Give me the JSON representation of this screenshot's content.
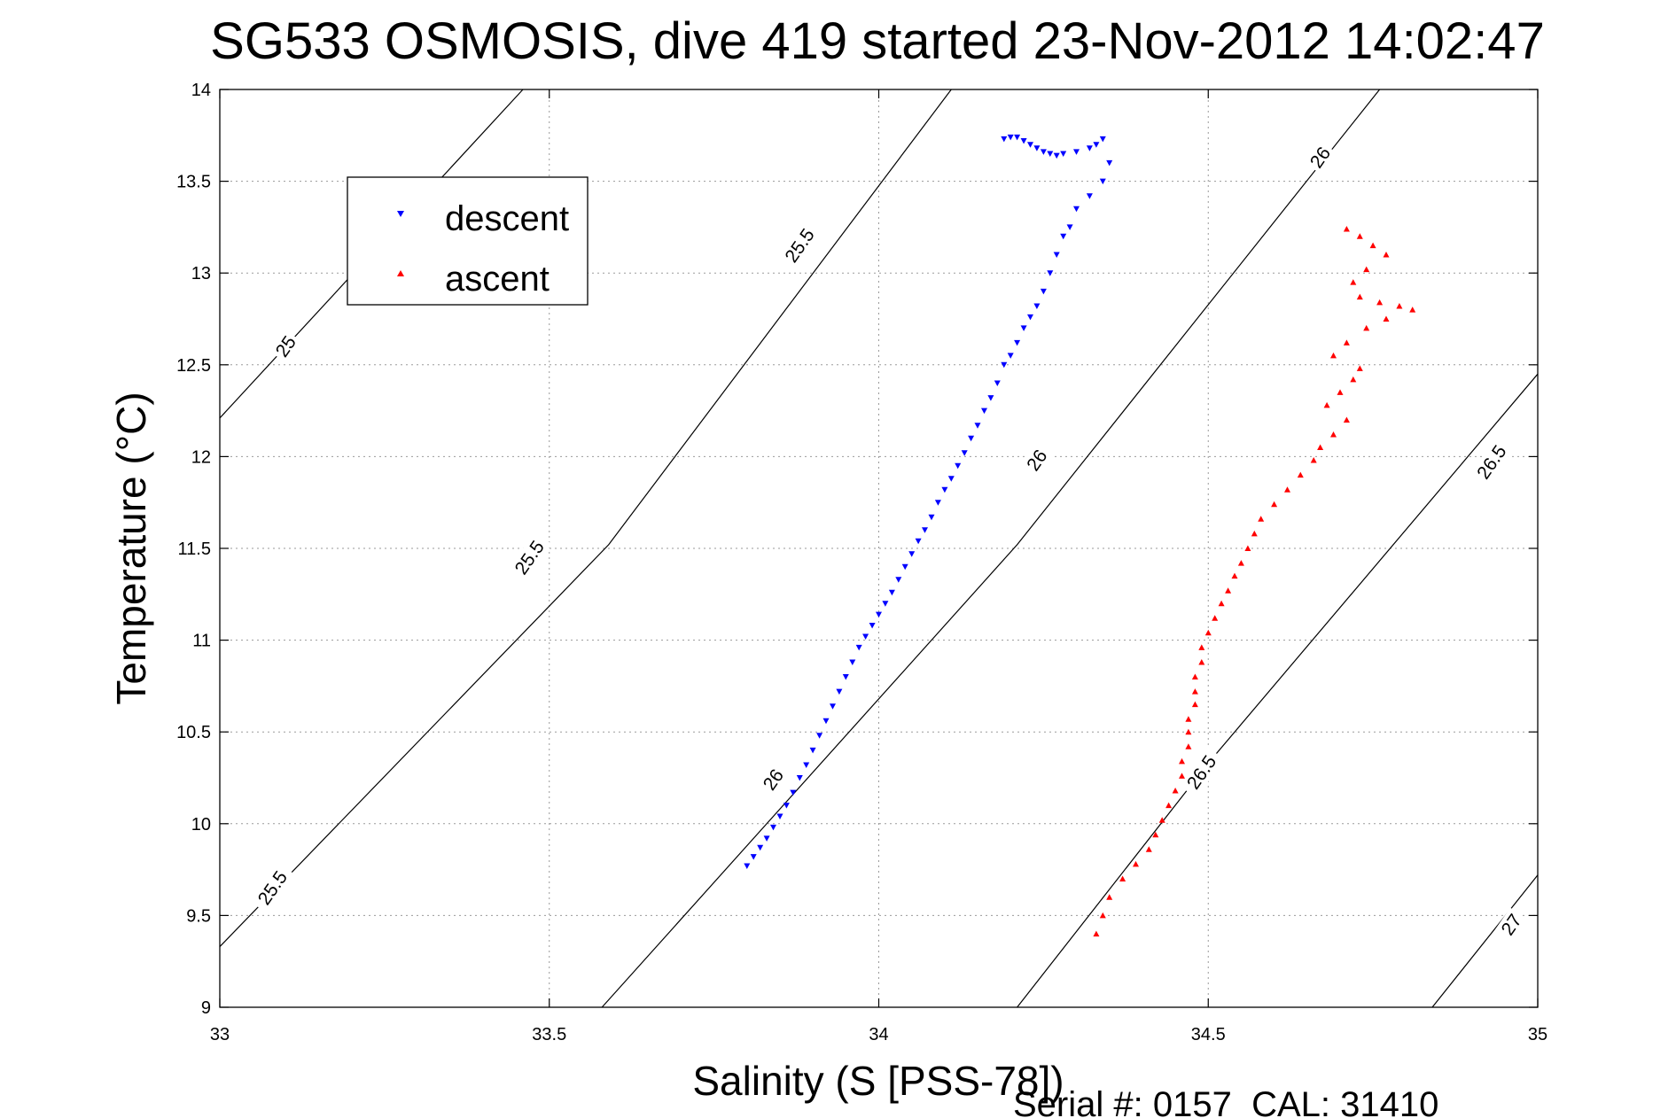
{
  "chart_data": {
    "type": "scatter",
    "title": "SG533 OSMOSIS, dive 419 started 23-Nov-2012 14:02:47",
    "xlabel": "Salinity (S [PSS-78])",
    "ylabel": "Temperature (°C)",
    "xlim": [
      33,
      35
    ],
    "ylim": [
      9,
      14
    ],
    "xticks": [
      "33",
      "33.5",
      "34",
      "34.5",
      "35"
    ],
    "yticks": [
      "9",
      "9.5",
      "10",
      "10.5",
      "11",
      "11.5",
      "12",
      "12.5",
      "13",
      "13.5",
      "14"
    ],
    "grid": true,
    "legend_location": "upper-left",
    "footer": "Serial #: 0157  CAL: 31410",
    "contours": [
      {
        "level": "25",
        "points": [
          [
            33.0,
            12.21
          ],
          [
            33.46,
            14.0
          ]
        ]
      },
      {
        "level": "25.5",
        "points": [
          [
            33.0,
            9.33
          ],
          [
            33.59,
            11.52
          ],
          [
            34.11,
            14.0
          ]
        ]
      },
      {
        "level": "26",
        "points": [
          [
            33.58,
            9.0
          ],
          [
            34.21,
            11.52
          ],
          [
            34.76,
            14.0
          ]
        ]
      },
      {
        "level": "26.5",
        "points": [
          [
            34.21,
            9.0
          ],
          [
            34.5,
            10.33
          ],
          [
            35.0,
            12.45
          ]
        ]
      },
      {
        "level": "27",
        "points": [
          [
            34.84,
            9.0
          ],
          [
            35.0,
            9.72
          ]
        ]
      }
    ],
    "contour_labels": [
      {
        "text": "25",
        "x": 33.1,
        "y": 12.6,
        "angle": -55
      },
      {
        "text": "25.5",
        "x": 33.08,
        "y": 9.65,
        "angle": -55
      },
      {
        "text": "25.5",
        "x": 33.47,
        "y": 11.45,
        "angle": -55
      },
      {
        "text": "25.5",
        "x": 33.88,
        "y": 13.15,
        "angle": -55
      },
      {
        "text": "26",
        "x": 33.84,
        "y": 10.24,
        "angle": -55
      },
      {
        "text": "26",
        "x": 34.24,
        "y": 11.98,
        "angle": -55
      },
      {
        "text": "26",
        "x": 34.67,
        "y": 13.63,
        "angle": -55
      },
      {
        "text": "26.5",
        "x": 34.49,
        "y": 10.28,
        "angle": -55
      },
      {
        "text": "26.5",
        "x": 34.93,
        "y": 11.97,
        "angle": -55
      },
      {
        "text": "27",
        "x": 34.96,
        "y": 9.45,
        "angle": -55
      }
    ],
    "series": [
      {
        "name": "descent",
        "color": "#0000ff",
        "marker": "triangle-down",
        "x": [
          34.34,
          34.33,
          34.32,
          34.3,
          34.28,
          34.27,
          34.26,
          34.25,
          34.24,
          34.23,
          34.22,
          34.21,
          34.2,
          34.19,
          34.35,
          34.34,
          34.32,
          34.3,
          34.29,
          34.28,
          34.27,
          34.26,
          34.25,
          34.24,
          34.23,
          34.22,
          34.21,
          34.2,
          34.19,
          34.18,
          34.17,
          34.16,
          34.15,
          34.14,
          34.13,
          34.12,
          34.11,
          34.1,
          34.09,
          34.08,
          34.07,
          34.06,
          34.05,
          34.04,
          34.03,
          34.02,
          34.01,
          34.0,
          33.99,
          33.98,
          33.97,
          33.96,
          33.95,
          33.94,
          33.93,
          33.92,
          33.91,
          33.9,
          33.89,
          33.88,
          33.87,
          33.86,
          33.85,
          33.84,
          33.83,
          33.82,
          33.81,
          33.8
        ],
        "y": [
          13.73,
          13.7,
          13.68,
          13.66,
          13.65,
          13.64,
          13.65,
          13.66,
          13.68,
          13.7,
          13.72,
          13.74,
          13.74,
          13.73,
          13.6,
          13.5,
          13.42,
          13.35,
          13.25,
          13.2,
          13.1,
          13.0,
          12.9,
          12.82,
          12.76,
          12.7,
          12.62,
          12.55,
          12.5,
          12.4,
          12.32,
          12.25,
          12.17,
          12.1,
          12.02,
          11.95,
          11.88,
          11.82,
          11.75,
          11.67,
          11.6,
          11.54,
          11.47,
          11.4,
          11.33,
          11.26,
          11.2,
          11.14,
          11.08,
          11.02,
          10.96,
          10.88,
          10.8,
          10.72,
          10.64,
          10.56,
          10.48,
          10.4,
          10.32,
          10.25,
          10.17,
          10.1,
          10.04,
          9.98,
          9.92,
          9.87,
          9.82,
          9.77
        ]
      },
      {
        "name": "ascent",
        "color": "#ff0000",
        "marker": "triangle-up",
        "x": [
          34.71,
          34.73,
          34.75,
          34.77,
          34.74,
          34.72,
          34.73,
          34.76,
          34.79,
          34.81,
          34.77,
          34.74,
          34.71,
          34.69,
          34.73,
          34.72,
          34.7,
          34.68,
          34.71,
          34.69,
          34.67,
          34.66,
          34.64,
          34.62,
          34.6,
          34.58,
          34.57,
          34.56,
          34.55,
          34.54,
          34.53,
          34.52,
          34.51,
          34.5,
          34.49,
          34.49,
          34.48,
          34.48,
          34.48,
          34.47,
          34.47,
          34.47,
          34.46,
          34.46,
          34.45,
          34.44,
          34.43,
          34.42,
          34.41,
          34.39,
          34.37,
          34.35,
          34.34,
          34.33
        ],
        "y": [
          13.24,
          13.2,
          13.15,
          13.1,
          13.02,
          12.95,
          12.87,
          12.84,
          12.82,
          12.8,
          12.75,
          12.7,
          12.62,
          12.55,
          12.48,
          12.42,
          12.35,
          12.28,
          12.2,
          12.12,
          12.05,
          11.98,
          11.9,
          11.82,
          11.74,
          11.66,
          11.58,
          11.5,
          11.42,
          11.35,
          11.27,
          11.2,
          11.12,
          11.04,
          10.96,
          10.88,
          10.8,
          10.72,
          10.65,
          10.57,
          10.5,
          10.42,
          10.34,
          10.26,
          10.18,
          10.1,
          10.02,
          9.94,
          9.86,
          9.78,
          9.7,
          9.6,
          9.5,
          9.4
        ]
      }
    ]
  }
}
